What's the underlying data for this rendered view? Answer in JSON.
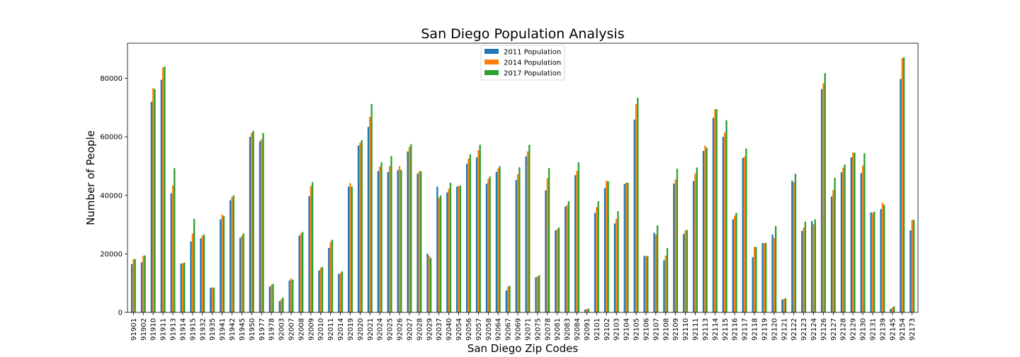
{
  "chart_data": {
    "type": "bar",
    "title": "San Diego Population Analysis",
    "xlabel": "San Diego Zip Codes",
    "ylabel": "Number of People",
    "ylim": [
      0,
      92000
    ],
    "yticks": [
      0,
      20000,
      40000,
      60000,
      80000
    ],
    "yticklabels": [
      "0",
      "20000",
      "40000",
      "60000",
      "80000"
    ],
    "legend_position": "top-center",
    "categories": [
      "91901",
      "91902",
      "91910",
      "91911",
      "91913",
      "91914",
      "91915",
      "91932",
      "91935",
      "91941",
      "91942",
      "91945",
      "91950",
      "91977",
      "91978",
      "92003",
      "92007",
      "92008",
      "92009",
      "92010",
      "92011",
      "92014",
      "92019",
      "92020",
      "92021",
      "92024",
      "92025",
      "92026",
      "92027",
      "92028",
      "92029",
      "92037",
      "92040",
      "92054",
      "92056",
      "92057",
      "92058",
      "92064",
      "92067",
      "92069",
      "92071",
      "92075",
      "92078",
      "92081",
      "92083",
      "92084",
      "92091",
      "92101",
      "92102",
      "92103",
      "92104",
      "92105",
      "92106",
      "92107",
      "92108",
      "92109",
      "92110",
      "92111",
      "92113",
      "92114",
      "92115",
      "92116",
      "92117",
      "92118",
      "92119",
      "92120",
      "92121",
      "92122",
      "92123",
      "92124",
      "92126",
      "92127",
      "92128",
      "92129",
      "92130",
      "92131",
      "92139",
      "92145",
      "92154",
      "92173"
    ],
    "series": [
      {
        "name": "2011 Population",
        "color": "#1f77b4",
        "values": [
          16500,
          17100,
          72000,
          79500,
          40700,
          16700,
          24200,
          25300,
          8400,
          31800,
          38300,
          25500,
          60000,
          58500,
          8800,
          3900,
          10900,
          26200,
          39700,
          14300,
          22000,
          13100,
          43000,
          57000,
          63400,
          48300,
          48000,
          48600,
          55000,
          47400,
          20100,
          43000,
          41000,
          43000,
          50800,
          53000,
          44000,
          48000,
          7500,
          45200,
          53300,
          12000,
          41700,
          28000,
          36200,
          46900,
          1000,
          34000,
          42500,
          30400,
          43900,
          65900,
          19300,
          27200,
          17800,
          44000,
          26800,
          44900,
          55200,
          66500,
          60000,
          31800,
          52800,
          18800,
          23700,
          26600,
          4400,
          45000,
          27800,
          31200,
          76300,
          39600,
          47900,
          53000,
          47600,
          34200,
          35300,
          1200,
          79800,
          28000
        ]
      },
      {
        "name": "2014 Population",
        "color": "#ff7f0e",
        "values": [
          18200,
          19300,
          76700,
          83700,
          43400,
          16800,
          27000,
          26200,
          8500,
          33400,
          39400,
          26200,
          61400,
          59200,
          9400,
          4500,
          11600,
          27000,
          43200,
          15300,
          24100,
          13500,
          44200,
          58000,
          66800,
          49800,
          50000,
          50000,
          56600,
          48300,
          19400,
          39200,
          42300,
          43200,
          52500,
          55500,
          45600,
          49200,
          8800,
          47200,
          55000,
          12300,
          45900,
          28500,
          36700,
          48400,
          1100,
          36000,
          45000,
          31900,
          44400,
          71200,
          19400,
          26600,
          19400,
          45400,
          28000,
          47400,
          57000,
          69400,
          61500,
          33100,
          53200,
          22400,
          23700,
          25400,
          4600,
          44500,
          29000,
          30100,
          78300,
          41800,
          49400,
          54600,
          50200,
          34000,
          37500,
          1700,
          86900,
          31500
        ]
      },
      {
        "name": "2017 Population",
        "color": "#2ca02c",
        "values": [
          18200,
          19500,
          76300,
          84000,
          49300,
          17000,
          32000,
          26600,
          8500,
          33000,
          40000,
          27000,
          62100,
          61300,
          9700,
          5100,
          11200,
          27500,
          44500,
          15500,
          24800,
          14000,
          43000,
          58900,
          71200,
          51300,
          53400,
          48700,
          57500,
          48200,
          18600,
          40000,
          44300,
          43300,
          54000,
          57300,
          46400,
          50000,
          9100,
          49600,
          57300,
          12700,
          49300,
          29000,
          38000,
          51300,
          1300,
          38000,
          44800,
          34600,
          44300,
          73400,
          19200,
          29700,
          22000,
          49100,
          28200,
          49500,
          56300,
          69500,
          65700,
          34000,
          56000,
          22400,
          23700,
          29500,
          4800,
          47400,
          31000,
          31800,
          81800,
          46000,
          50500,
          54600,
          54400,
          34400,
          36800,
          2100,
          87200,
          31700
        ]
      }
    ]
  }
}
